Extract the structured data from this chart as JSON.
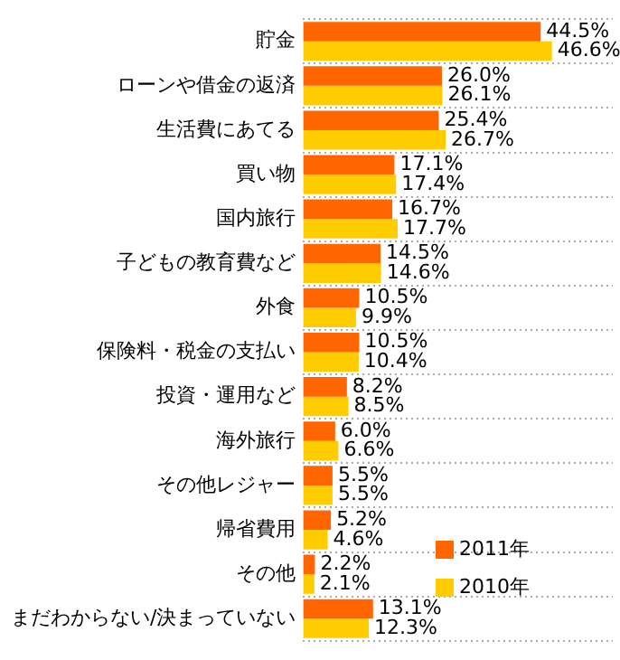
{
  "chart_data": {
    "type": "bar",
    "orientation": "horizontal",
    "categories": [
      "貯金",
      "ローンや借金の返済",
      "生活費にあてる",
      "買い物",
      "国内旅行",
      "子どもの教育費など",
      "外食",
      "保険料・税金の支払い",
      "投資・運用など",
      "海外旅行",
      "その他レジャー",
      "帰省費用",
      "その他",
      "まだわからない/決まっていない"
    ],
    "series": [
      {
        "name": "2011年",
        "color": "#ff6600",
        "values": [
          44.5,
          26.0,
          25.4,
          17.1,
          16.7,
          14.5,
          10.5,
          10.5,
          8.2,
          6.0,
          5.5,
          5.2,
          2.2,
          13.1
        ],
        "value_labels": [
          "44.5%",
          "26.0%",
          "25.4%",
          "17.1%",
          "16.7%",
          "14.5%",
          "10.5%",
          "10.5%",
          "8.2%",
          "6.0%",
          "5.5%",
          "5.2%",
          "2.2%",
          "13.1%"
        ]
      },
      {
        "name": "2010年",
        "color": "#ffcc00",
        "values": [
          46.6,
          26.1,
          26.7,
          17.4,
          17.7,
          14.6,
          9.9,
          10.4,
          8.5,
          6.6,
          5.5,
          4.6,
          2.1,
          12.3
        ],
        "value_labels": [
          "46.6%",
          "26.1%",
          "26.7%",
          "17.4%",
          "17.7%",
          "14.6%",
          "9.9%",
          "10.4%",
          "8.5%",
          "6.6%",
          "5.5%",
          "4.6%",
          "2.1%",
          "12.3%"
        ]
      }
    ],
    "xlim": [
      0,
      58
    ],
    "tick_labels": "y",
    "grid": "y",
    "legend": "bottom right"
  }
}
